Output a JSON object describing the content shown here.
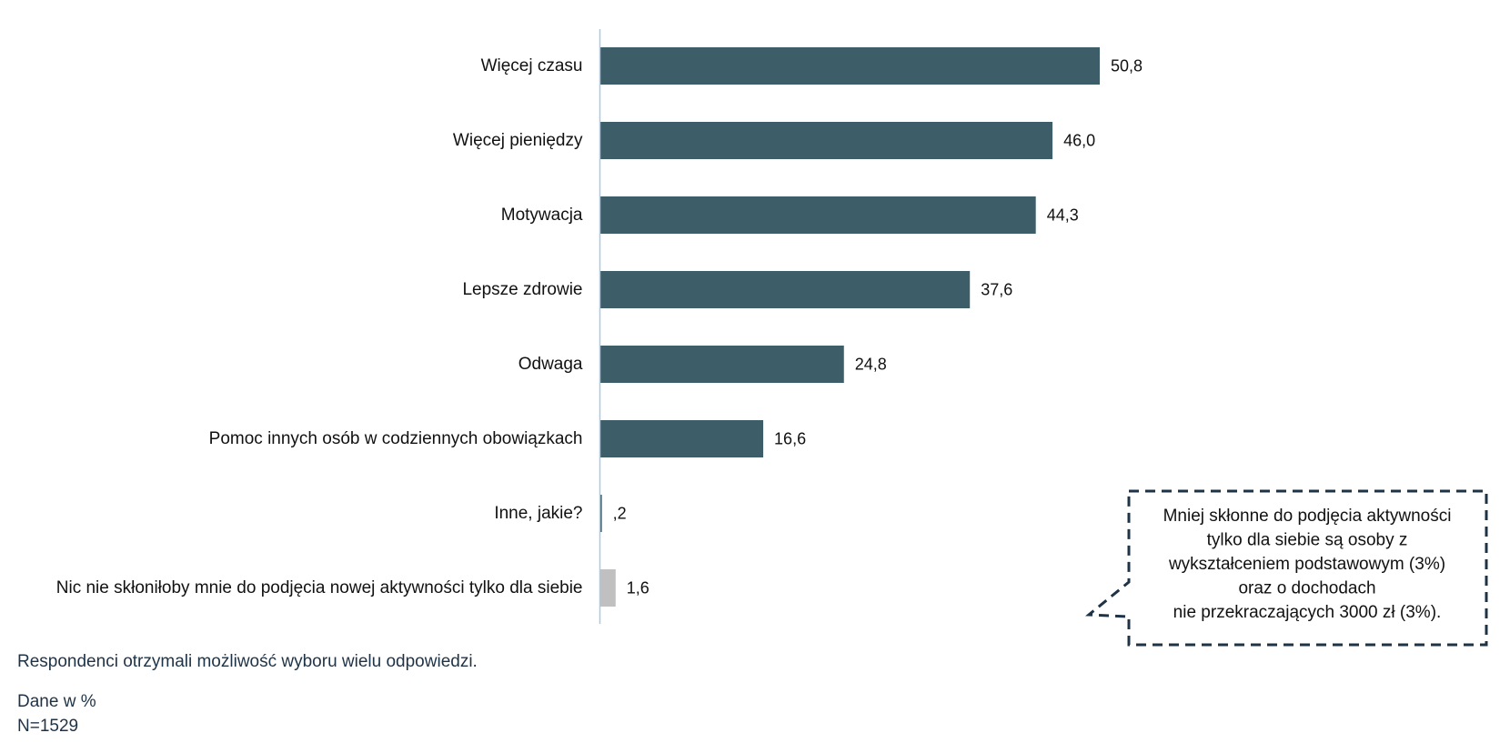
{
  "chart_data": {
    "type": "bar",
    "orientation": "horizontal",
    "categories": [
      "Więcej czasu",
      "Więcej pieniędzy",
      "Motywacja",
      "Lepsze zdrowie",
      "Odwaga",
      "Pomoc innych osób w codziennych obowiązkach",
      "Inne, jakie?",
      "Nic nie skłoniłoby mnie do podjęcia nowej aktywności tylko dla siebie"
    ],
    "values": [
      50.8,
      46.0,
      44.3,
      37.6,
      24.8,
      16.6,
      0.2,
      1.6
    ],
    "value_labels": [
      "50,8",
      "46,0",
      "44,3",
      "37,6",
      "24,8",
      "16,6",
      ",2",
      "1,6"
    ],
    "bar_colors": [
      "#3d5d69",
      "#3d5d69",
      "#3d5d69",
      "#3d5d69",
      "#3d5d69",
      "#3d5d69",
      "#3d5d69",
      "#c0c0c0"
    ],
    "xlim": [
      0,
      60
    ],
    "grid": false,
    "title": "",
    "xlabel": "",
    "ylabel": ""
  },
  "axis_color": "#a9c9e8",
  "callout": {
    "lines": [
      "Mniej skłonne do podjęcia aktywności",
      "tylko dla siebie są osoby z",
      "wykształceniem podstawowym (3%)",
      "oraz o dochodach",
      "nie przekraczających 3000 zł (3%)."
    ],
    "border_color": "#1f3347"
  },
  "notes": {
    "multi_choice": "Respondenci otrzymali możliwość wyboru wielu odpowiedzi.",
    "unit": "Dane w %",
    "sample": "N=1529"
  }
}
